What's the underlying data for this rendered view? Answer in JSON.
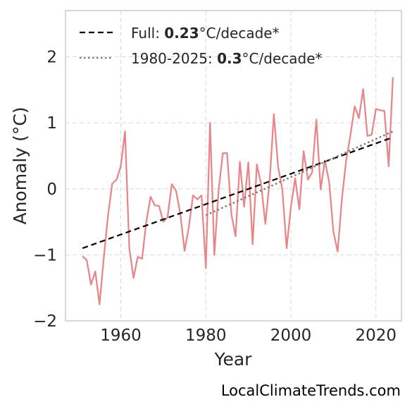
{
  "chart_data": {
    "type": "line",
    "xlabel": "Year",
    "ylabel": "Anomaly (°C)",
    "xlim": [
      1947,
      2026
    ],
    "ylim": [
      -2,
      2.7
    ],
    "xticks": [
      1960,
      1980,
      2000,
      2020
    ],
    "yticks": [
      -2,
      -1,
      0,
      1,
      2
    ],
    "ytick_labels": [
      "−2",
      "−1",
      "0",
      "1",
      "2"
    ],
    "grid": true,
    "legend_position": "upper-left",
    "series": [
      {
        "key": "anomaly",
        "color": "#e8878a",
        "style": "solid",
        "x": [
          1951,
          1952,
          1953,
          1954,
          1955,
          1956,
          1957,
          1958,
          1959,
          1960,
          1961,
          1962,
          1963,
          1964,
          1965,
          1966,
          1967,
          1968,
          1969,
          1970,
          1971,
          1972,
          1973,
          1974,
          1975,
          1976,
          1977,
          1978,
          1979,
          1980,
          1981,
          1982,
          1983,
          1984,
          1985,
          1986,
          1987,
          1988,
          1989,
          1990,
          1991,
          1992,
          1993,
          1994,
          1995,
          1996,
          1997,
          1998,
          1999,
          2000,
          2001,
          2002,
          2003,
          2004,
          2005,
          2006,
          2007,
          2008,
          2009,
          2010,
          2011,
          2012,
          2013,
          2014,
          2015,
          2016,
          2017,
          2018,
          2019,
          2020,
          2021,
          2022,
          2023,
          2024
        ],
        "y": [
          -1.02,
          -1.08,
          -1.45,
          -1.25,
          -1.75,
          -1.05,
          -0.4,
          0.08,
          0.14,
          0.34,
          0.87,
          -0.9,
          -1.35,
          -1.03,
          -1.06,
          -0.5,
          -0.12,
          -0.25,
          -0.26,
          -0.5,
          -0.43,
          0.07,
          -0.03,
          -0.38,
          -0.94,
          -0.58,
          -0.1,
          -0.16,
          -0.1,
          -1.2,
          1.0,
          -1.0,
          -0.02,
          0.54,
          0.54,
          -0.38,
          -0.72,
          0.41,
          -0.27,
          0.4,
          -0.84,
          0.37,
          0.07,
          -0.53,
          0.11,
          1.13,
          0.33,
          -0.01,
          -0.9,
          -0.28,
          0.16,
          -0.31,
          0.57,
          0.14,
          0.25,
          1.05,
          -0.01,
          0.43,
          0.1,
          -0.65,
          -0.95,
          -0.15,
          0.43,
          0.81,
          1.25,
          1.07,
          1.51,
          0.8,
          0.82,
          1.21,
          1.19,
          1.18,
          0.34,
          1.69
        ]
      },
      {
        "key": "trend-full",
        "color": "#000000",
        "style": "dashed",
        "x": [
          1951,
          2024
        ],
        "y": [
          -0.9,
          0.78
        ]
      },
      {
        "key": "trend-1980",
        "color": "#7f7f7f",
        "style": "dotted",
        "x": [
          1980,
          2024
        ],
        "y": [
          -0.4,
          0.87
        ]
      }
    ],
    "legend": [
      {
        "prefix": "Full: ",
        "value": "0.23",
        "suffix": "°C/decade*",
        "style": "dashed",
        "color": "#000000"
      },
      {
        "prefix": "1980-2025: ",
        "value": "0.3",
        "suffix": "°C/decade*",
        "style": "dotted",
        "color": "#7f7f7f"
      }
    ]
  },
  "watermark": "LocalClimateTrends.com"
}
